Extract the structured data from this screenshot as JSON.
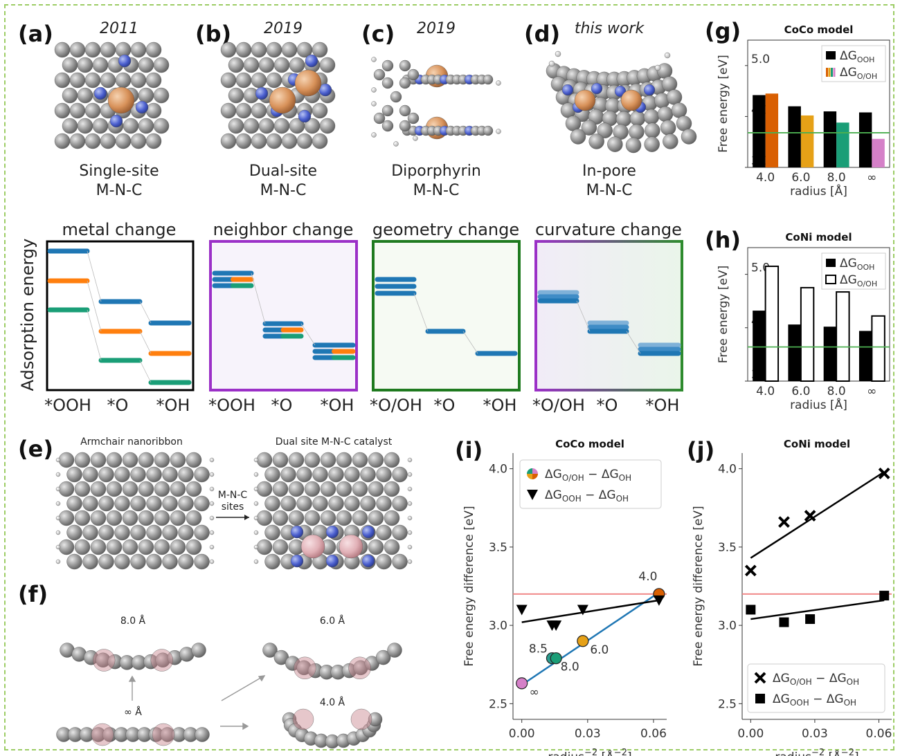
{
  "panel_labels": {
    "a": "(a)",
    "b": "(b)",
    "c": "(c)",
    "d": "(d)",
    "e": "(e)",
    "f": "(f)",
    "g": "(g)",
    "h": "(h)",
    "i": "(i)",
    "j": "(j)"
  },
  "models": [
    {
      "year": "2011",
      "name1": "Single-site",
      "name2": "M-N-C"
    },
    {
      "year": "2019",
      "name1": "Dual-site",
      "name2": "M-N-C"
    },
    {
      "year": "2019",
      "name1": "Diporphyrin",
      "name2": "M-N-C"
    },
    {
      "year": "this work",
      "name1": "In-pore",
      "name2": "M-N-C"
    }
  ],
  "changes": {
    "titles": [
      "metal change",
      "neighbor change",
      "geometry change",
      "curvature change"
    ],
    "ylabel": "Adsorption energy",
    "xlabels": [
      [
        "*OOH",
        "*O",
        "*OH"
      ],
      [
        "*OOH",
        "*O",
        "*OH"
      ],
      [
        "*O/OH",
        "*O",
        "*OH"
      ],
      [
        "*O/OH",
        "*O",
        "*OH"
      ]
    ]
  },
  "structures": {
    "armchair": "Armchair nanoribbon",
    "dual": "Dual site M-N-C catalyst",
    "arrow_l1": "M-N-C",
    "arrow_l2": "sites",
    "r8": "8.0 Å",
    "r6": "6.0 Å",
    "rinf": "∞ Å",
    "r4": "4.0 Å"
  },
  "colors": {
    "blue": "#1f77b4",
    "orange": "#ff7f0e",
    "green": "#1a9e77",
    "red_line": "#f08080",
    "green_line": "#4caf50"
  },
  "chart_data": [
    {
      "id": "g",
      "type": "bar",
      "title": "CoCo model",
      "categories": [
        "4.0",
        "6.0",
        "8.0",
        "∞"
      ],
      "series": [
        {
          "name": "ΔG_OOH",
          "values": [
            4.42,
            4.2,
            4.1,
            4.08
          ]
        },
        {
          "name": "ΔG_O/OH",
          "values": [
            4.45,
            4.02,
            3.88,
            3.56
          ]
        }
      ],
      "bar2_colors": [
        "#d95f02",
        "#e6a117",
        "#1a9e77",
        "#d580c8"
      ],
      "hline": 3.68,
      "ylim": [
        3.0,
        5.5
      ],
      "yticks": [
        "3.0",
        "4.0",
        "5.0"
      ],
      "xlabel": "radius [Å]",
      "ylabel": "Free energy [eV]",
      "legend": [
        "ΔG",
        "OOH",
        "ΔG",
        "O/OH"
      ]
    },
    {
      "id": "h",
      "type": "bar",
      "title": "CoNi model",
      "categories": [
        "4.0",
        "6.0",
        "8.0",
        "∞"
      ],
      "series": [
        {
          "name": "ΔG_OOH",
          "values": [
            4.32,
            4.06,
            4.02,
            3.94
          ]
        },
        {
          "name": "ΔG_O/OH",
          "values": [
            5.15,
            4.75,
            4.67,
            4.22
          ]
        }
      ],
      "hline": 3.64,
      "ylim": [
        3.0,
        5.5
      ],
      "yticks": [
        "3.0",
        "4.0",
        "5.0"
      ],
      "xlabel": "radius [Å]",
      "ylabel": "Free energy [eV]",
      "legend": [
        "ΔG",
        "OOH",
        "ΔG",
        "O/OH"
      ]
    },
    {
      "id": "i",
      "type": "scatter",
      "title": "CoCo model",
      "xlim": [
        -0.004,
        0.066
      ],
      "ylim": [
        2.4,
        4.1
      ],
      "xticks": [
        "0.00",
        "0.03",
        "0.06"
      ],
      "yticks": [
        "2.5",
        "3.0",
        "3.5",
        "4.0"
      ],
      "xlabel": "radius",
      "ylabel": "Free energy difference [eV]",
      "series": [
        {
          "name": "ΔG_O/OH − ΔG_OH",
          "marker": "circle",
          "points": [
            {
              "x": 0.0,
              "y": 2.63,
              "color": "#d580c8",
              "label": "∞"
            },
            {
              "x": 0.0138,
              "y": 2.79,
              "color": "#2a9d8f",
              "label": "8.5"
            },
            {
              "x": 0.0156,
              "y": 2.79,
              "color": "#1a9e77",
              "label": "8.0"
            },
            {
              "x": 0.0278,
              "y": 2.9,
              "color": "#e6a117",
              "label": "6.0"
            },
            {
              "x": 0.0625,
              "y": 3.2,
              "color": "#d95f02",
              "label": "4.0"
            }
          ],
          "fit": [
            [
              0.0,
              2.62
            ],
            [
              0.0625,
              3.21
            ]
          ]
        },
        {
          "name": "ΔG_OOH − ΔG_OH",
          "marker": "triangle",
          "points": [
            {
              "x": 0.0,
              "y": 3.1
            },
            {
              "x": 0.0138,
              "y": 3.0
            },
            {
              "x": 0.0156,
              "y": 3.0
            },
            {
              "x": 0.0278,
              "y": 3.1
            },
            {
              "x": 0.0625,
              "y": 3.16
            }
          ],
          "fit": [
            [
              0.0,
              3.02
            ],
            [
              0.0625,
              3.16
            ]
          ]
        }
      ],
      "hline": 3.2,
      "legend": [
        "ΔG",
        "O/OH",
        "− ΔG",
        "OH",
        "ΔG",
        "OOH",
        "− ΔG",
        "OH"
      ]
    },
    {
      "id": "j",
      "type": "scatter",
      "title": "CoNi model",
      "xlim": [
        -0.004,
        0.066
      ],
      "ylim": [
        2.4,
        4.1
      ],
      "xticks": [
        "0.00",
        "0.03",
        "0.06"
      ],
      "yticks": [
        "2.5",
        "3.0",
        "3.5",
        "4.0"
      ],
      "xlabel": "radius",
      "ylabel": "Free energy difference [eV]",
      "series": [
        {
          "name": "ΔG_O/OH − ΔG_OH",
          "marker": "x",
          "points": [
            {
              "x": 0.0,
              "y": 3.35
            },
            {
              "x": 0.0156,
              "y": 3.66
            },
            {
              "x": 0.0278,
              "y": 3.7
            },
            {
              "x": 0.0625,
              "y": 3.97
            }
          ],
          "fit": [
            [
              0.0,
              3.43
            ],
            [
              0.0625,
              3.98
            ]
          ]
        },
        {
          "name": "ΔG_OOH − ΔG_OH",
          "marker": "square",
          "points": [
            {
              "x": 0.0,
              "y": 3.1
            },
            {
              "x": 0.0156,
              "y": 3.02
            },
            {
              "x": 0.0278,
              "y": 3.04
            },
            {
              "x": 0.0625,
              "y": 3.19
            }
          ],
          "fit": [
            [
              0.0,
              3.04
            ],
            [
              0.0625,
              3.16
            ]
          ]
        }
      ],
      "hline": 3.2,
      "legend": [
        "ΔG",
        "O/OH",
        "− ΔG",
        "OH",
        "ΔG",
        "OOH",
        "− ΔG",
        "OH"
      ]
    }
  ]
}
